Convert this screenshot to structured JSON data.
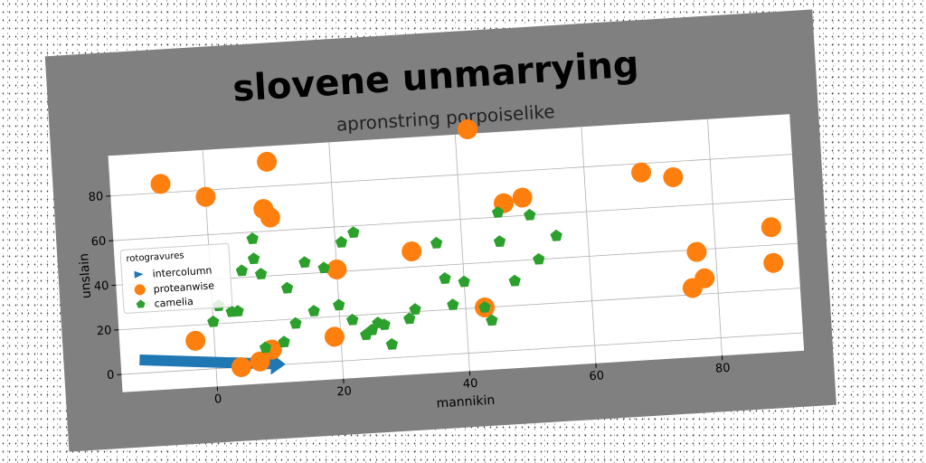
{
  "figure": {
    "title": "slovene unmarrying",
    "background": "#808080",
    "plot_background": "#ffffff"
  },
  "chart_data": {
    "type": "scatter",
    "title": "apronstring porpoiselike",
    "xlabel": "mannikin",
    "ylabel": "unslain",
    "xlim": [
      -15,
      93
    ],
    "ylim": [
      -8,
      98
    ],
    "xticks": [
      0,
      20,
      40,
      60,
      80
    ],
    "yticks": [
      0,
      20,
      40,
      60,
      80
    ],
    "grid": true,
    "legend": {
      "title": "rotogravures",
      "placement": "center-left"
    },
    "series": [
      {
        "name": "intercolumn",
        "marker": "arrow",
        "color": "#1f77b4",
        "start": [
          -12,
          6
        ],
        "end": [
          11,
          0
        ]
      },
      {
        "name": "proteanwise",
        "marker": "circle",
        "color": "#ff7f0e",
        "points": [
          [
            -7,
            84
          ],
          [
            0,
            77
          ],
          [
            10,
            91
          ],
          [
            9,
            70
          ],
          [
            10,
            66
          ],
          [
            42,
            100
          ],
          [
            47,
            66
          ],
          [
            50,
            68
          ],
          [
            69,
            76
          ],
          [
            74,
            73
          ],
          [
            -3,
            13
          ],
          [
            4,
            0
          ],
          [
            7,
            2
          ],
          [
            9,
            7
          ],
          [
            19,
            11
          ],
          [
            20,
            41
          ],
          [
            32,
            47
          ],
          [
            43,
            20
          ],
          [
            77,
            39
          ],
          [
            78,
            27
          ],
          [
            76,
            23
          ],
          [
            89,
            48
          ],
          [
            89,
            32
          ]
        ]
      },
      {
        "name": "camelia",
        "marker": "pentagon",
        "color": "#2ca02c",
        "points": [
          [
            0,
            21
          ],
          [
            1,
            28
          ],
          [
            3,
            25
          ],
          [
            4,
            25
          ],
          [
            5,
            43
          ],
          [
            7,
            48
          ],
          [
            7,
            57
          ],
          [
            8,
            41
          ],
          [
            8,
            8
          ],
          [
            11,
            10
          ],
          [
            12,
            34
          ],
          [
            13,
            18
          ],
          [
            15,
            45
          ],
          [
            16,
            23
          ],
          [
            18,
            42
          ],
          [
            20,
            25
          ],
          [
            21,
            53
          ],
          [
            22,
            18
          ],
          [
            23,
            57
          ],
          [
            24,
            11
          ],
          [
            25,
            13
          ],
          [
            26,
            16
          ],
          [
            27,
            15
          ],
          [
            28,
            6
          ],
          [
            31,
            17
          ],
          [
            32,
            21
          ],
          [
            36,
            50
          ],
          [
            37,
            34
          ],
          [
            38,
            22
          ],
          [
            40,
            32
          ],
          [
            43,
            20
          ],
          [
            44,
            14
          ],
          [
            46,
            49
          ],
          [
            46,
            62
          ],
          [
            48,
            31
          ],
          [
            51,
            60
          ],
          [
            52,
            40
          ],
          [
            55,
            50
          ]
        ]
      }
    ]
  }
}
